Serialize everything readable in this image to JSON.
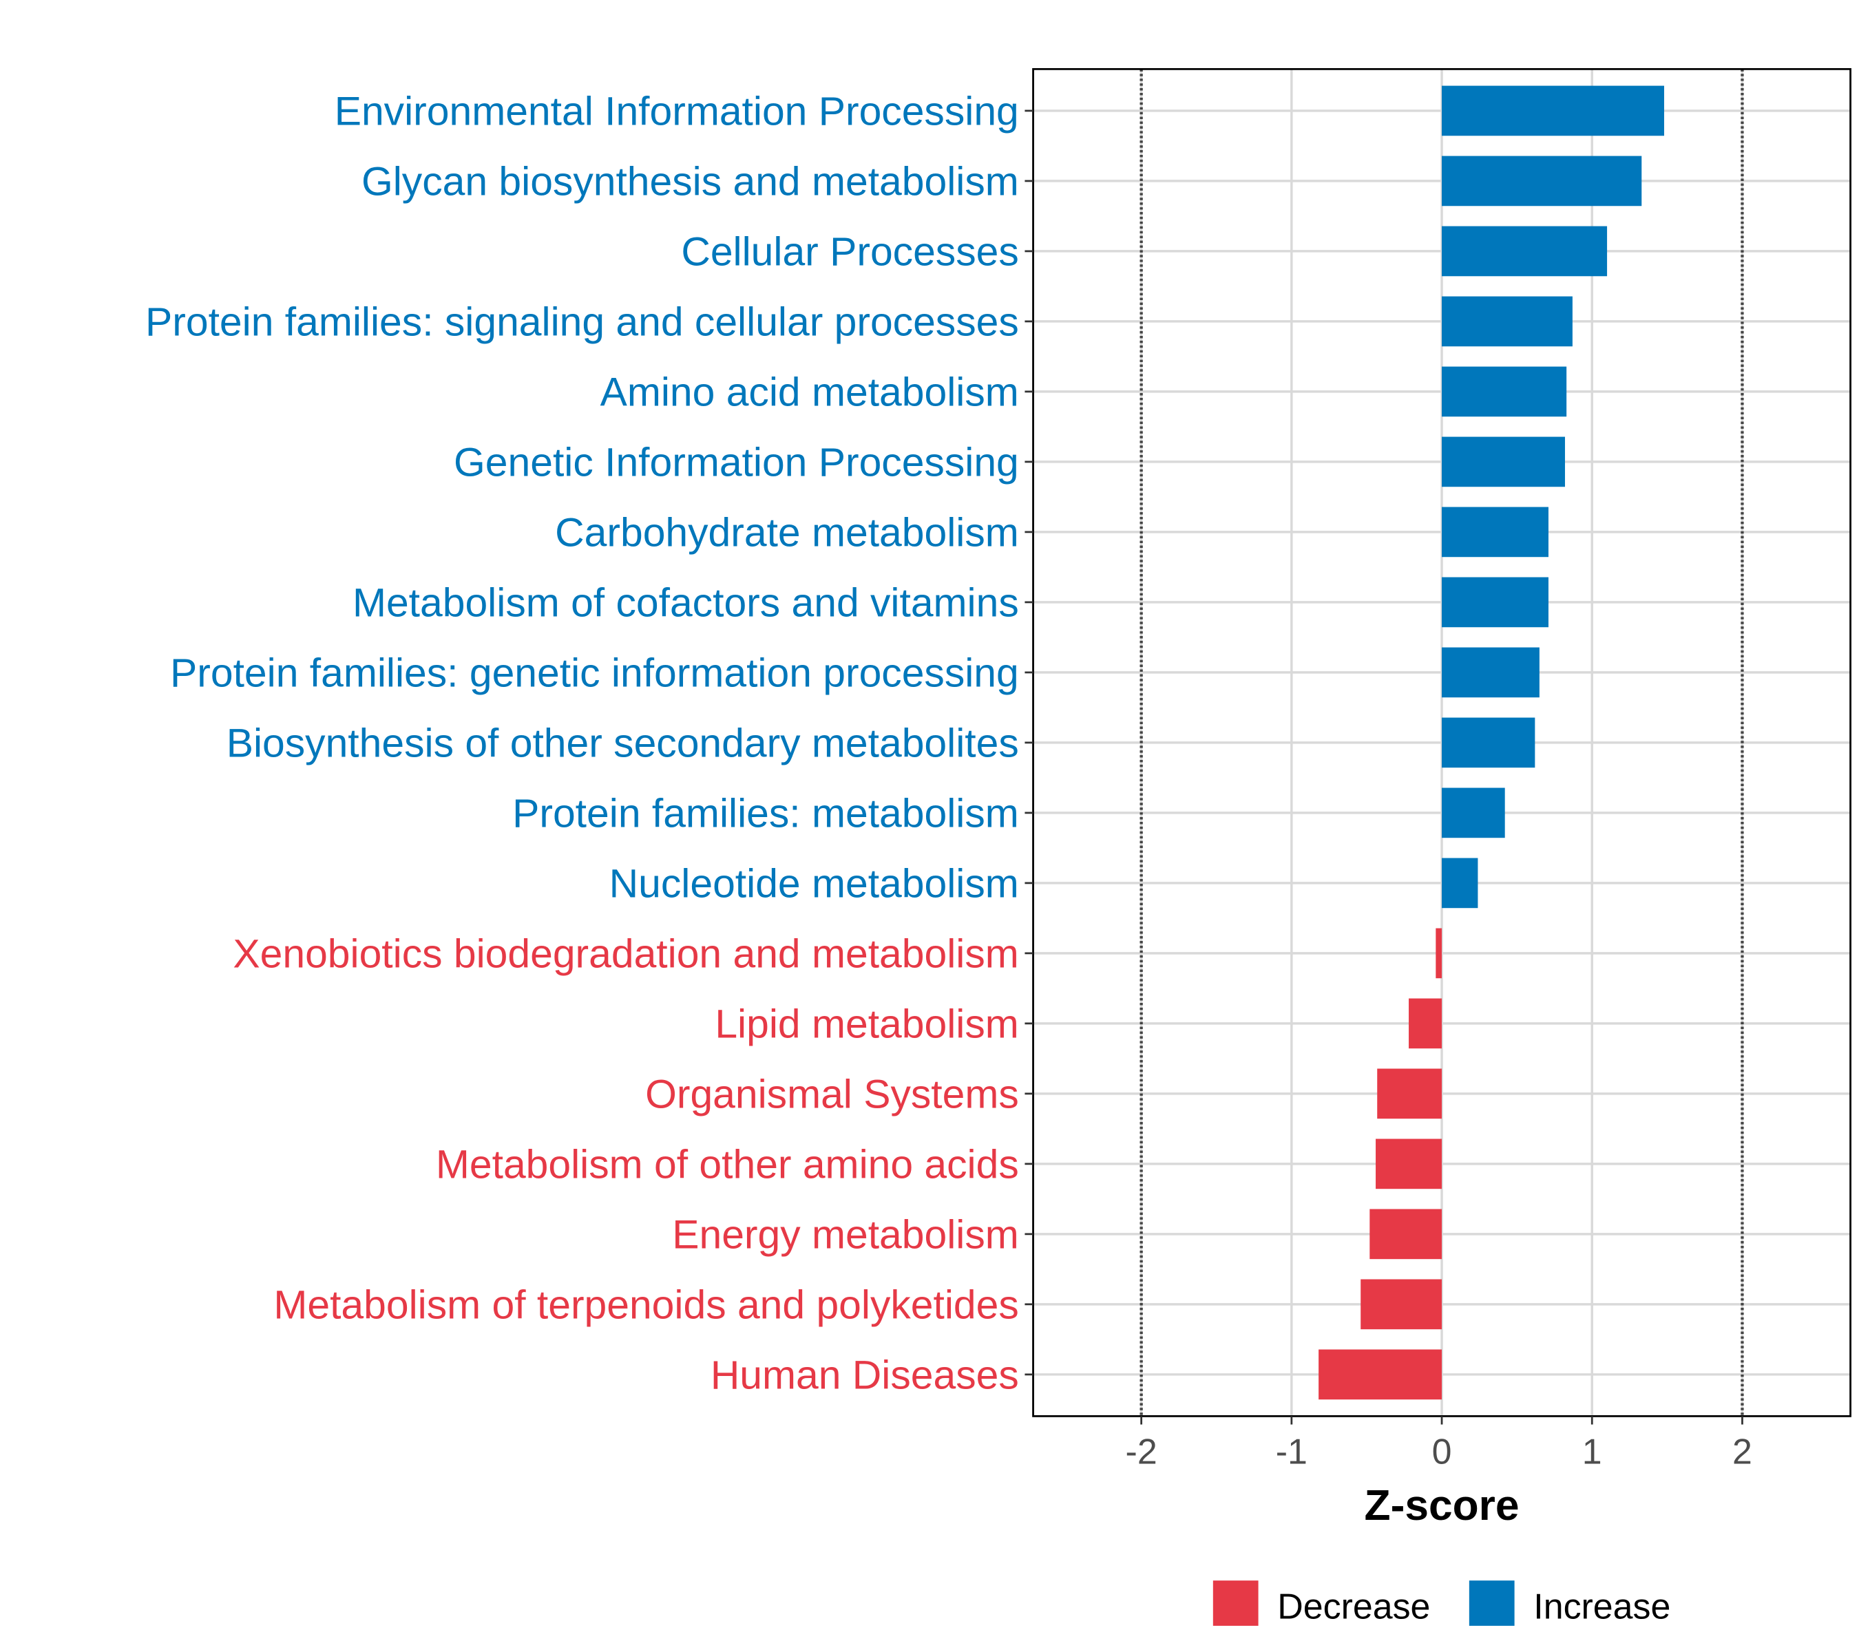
{
  "chart_data": {
    "type": "bar",
    "orientation": "horizontal",
    "title": "",
    "xlabel": "Z-score",
    "ylabel": "",
    "xlim": [
      -2.72,
      2.72
    ],
    "xticks": [
      -2,
      -1,
      0,
      1,
      2
    ],
    "xtick_labels": [
      "-2",
      "-1",
      "0",
      "1",
      "2"
    ],
    "reference_lines": [
      -2,
      2
    ],
    "grid": true,
    "legend": {
      "placement": "bottom",
      "entries": [
        {
          "label": "Decrease",
          "color": "#E63946"
        },
        {
          "label": "Increase",
          "color": "#0077BB"
        }
      ]
    },
    "categories": [
      "Environmental Information Processing",
      "Glycan biosynthesis and metabolism",
      "Cellular Processes",
      "Protein families: signaling and cellular processes",
      "Amino acid metabolism",
      "Genetic Information Processing",
      "Carbohydrate metabolism",
      "Metabolism of cofactors and vitamins",
      "Protein families: genetic information processing",
      "Biosynthesis of other secondary metabolites",
      "Protein families: metabolism",
      "Nucleotide metabolism",
      "Xenobiotics biodegradation and metabolism",
      "Lipid metabolism",
      "Organismal Systems",
      "Metabolism of other amino acids",
      "Energy metabolism",
      "Metabolism of terpenoids and polyketides",
      "Human Diseases"
    ],
    "values": [
      1.48,
      1.33,
      1.1,
      0.87,
      0.83,
      0.82,
      0.71,
      0.71,
      0.65,
      0.62,
      0.42,
      0.24,
      -0.04,
      -0.22,
      -0.43,
      -0.44,
      -0.48,
      -0.54,
      -0.82
    ]
  }
}
